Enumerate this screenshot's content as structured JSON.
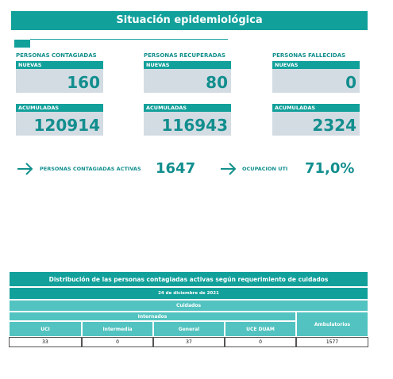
{
  "header": {
    "title": "Situación epidemiológica"
  },
  "cards": [
    {
      "label": "PERSONAS CONTAGIADAS",
      "new_label": "NUEVAS",
      "new": 160,
      "total_label": "ACUMULADAS",
      "total": 120914
    },
    {
      "label": "PERSONAS RECUPERADAS",
      "new_label": "NUEVAS",
      "new": 80,
      "total_label": "ACUMULADAS",
      "total": 116943
    },
    {
      "label": "PERSONAS FALLECIDAS",
      "new_label": "NUEVAS",
      "new": 0,
      "total_label": "ACUMULADAS",
      "total": 2324
    }
  ],
  "indicators": [
    {
      "label": "PERSONAS CONTAGIADAS ACTIVAS",
      "value": 1647
    },
    {
      "label": "OCUPACION UTI",
      "value": "71,0%"
    }
  ],
  "table": {
    "title": "Distribución de las personas contagiadas activas según requerimiento de cuidados",
    "date": "24 de diciembre de 2021",
    "group": "Cuidados",
    "subgroup": "Internados",
    "columns": [
      "UCI",
      "Intermedia",
      "General",
      "UCE DUAM",
      "Ambulatorios"
    ],
    "rows": [
      [
        33,
        0,
        37,
        0,
        1577
      ]
    ]
  }
}
